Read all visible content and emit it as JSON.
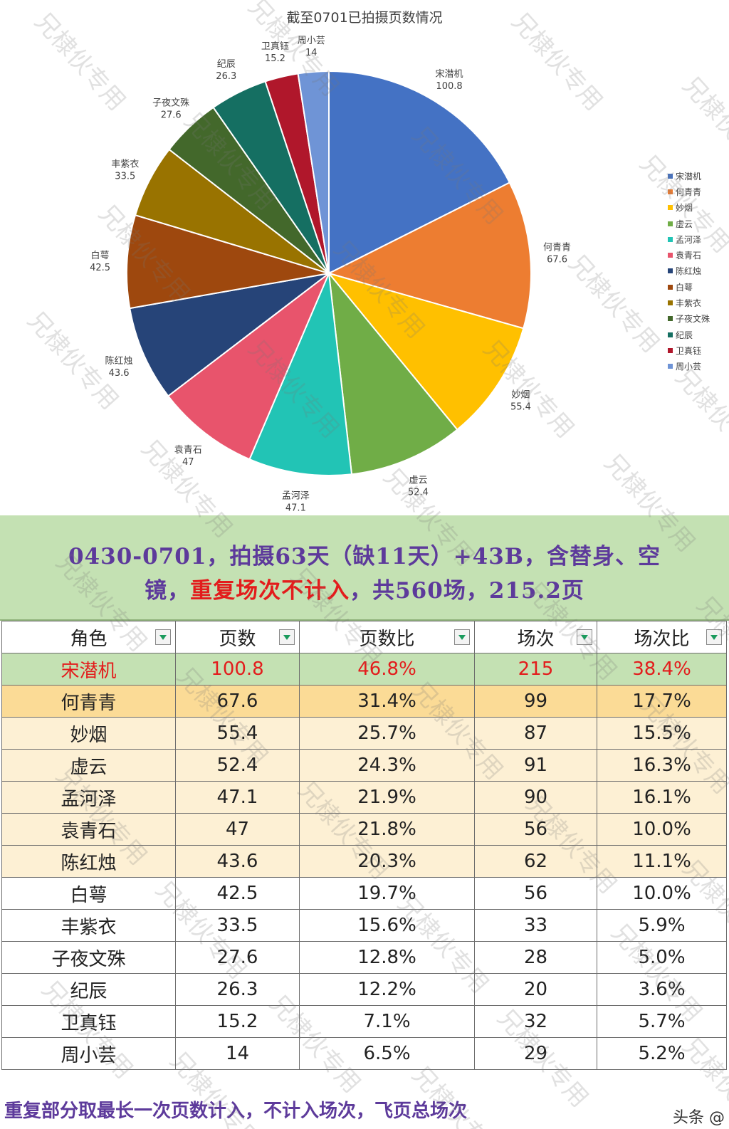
{
  "chart_data": {
    "type": "pie",
    "title": "截至0701已拍摄页数情况",
    "labels": [
      "宋潜机",
      "何青青",
      "妙烟",
      "虚云",
      "孟河泽",
      "袁青石",
      "陈红烛",
      "白萼",
      "丰紫衣",
      "子夜文殊",
      "纪辰",
      "卫真钰",
      "周小芸"
    ],
    "values": [
      100.8,
      67.6,
      55.4,
      52.4,
      47.1,
      47,
      43.6,
      42.5,
      33.5,
      27.6,
      26.3,
      15.2,
      14
    ],
    "value_labels": [
      "100.8",
      "67.6",
      "55.4",
      "52.4",
      "47.1",
      "47",
      "43.6",
      "42.5",
      "33.5",
      "27.6",
      "26.3",
      "15.2",
      "14"
    ],
    "colors": [
      "#4472c4",
      "#ed7d31",
      "#ffc000",
      "#70ad47",
      "#22c4b5",
      "#e8546c",
      "#264478",
      "#9e480e",
      "#997300",
      "#43682b",
      "#156f62",
      "#b0172b",
      "#6f94d6"
    ],
    "legend": {
      "position": "right"
    }
  },
  "table": {
    "banner_line1": "0430-0701，拍摄63天（缺11天）+43B，含替身、空",
    "banner_line2_a": "镜，",
    "banner_line2_red": "重复场次不计入",
    "banner_line2_b": "，共560场，215.2页",
    "headers": [
      "角色",
      "页数",
      "页数比",
      "场次",
      "场次比"
    ],
    "rows": [
      [
        "宋潜机",
        "100.8",
        "46.8%",
        "215",
        "38.4%"
      ],
      [
        "何青青",
        "67.6",
        "31.4%",
        "99",
        "17.7%"
      ],
      [
        "妙烟",
        "55.4",
        "25.7%",
        "87",
        "15.5%"
      ],
      [
        "虚云",
        "52.4",
        "24.3%",
        "91",
        "16.3%"
      ],
      [
        "孟河泽",
        "47.1",
        "21.9%",
        "90",
        "16.1%"
      ],
      [
        "袁青石",
        "47",
        "21.8%",
        "56",
        "10.0%"
      ],
      [
        "陈红烛",
        "43.6",
        "20.3%",
        "62",
        "11.1%"
      ],
      [
        "白萼",
        "42.5",
        "19.7%",
        "56",
        "10.0%"
      ],
      [
        "丰紫衣",
        "33.5",
        "15.6%",
        "33",
        "5.9%"
      ],
      [
        "子夜文殊",
        "27.6",
        "12.8%",
        "28",
        "5.0%"
      ],
      [
        "纪辰",
        "26.3",
        "12.2%",
        "20",
        "3.6%"
      ],
      [
        "卫真钰",
        "15.2",
        "7.1%",
        "32",
        "5.7%"
      ],
      [
        "周小芸",
        "14",
        "6.5%",
        "29",
        "5.2%"
      ]
    ],
    "footnote": "重复部分取最长一次页数计入，不计入场次，飞页总场次"
  },
  "watermark_text": "兄棣伙专用",
  "source_text": "头条 @"
}
